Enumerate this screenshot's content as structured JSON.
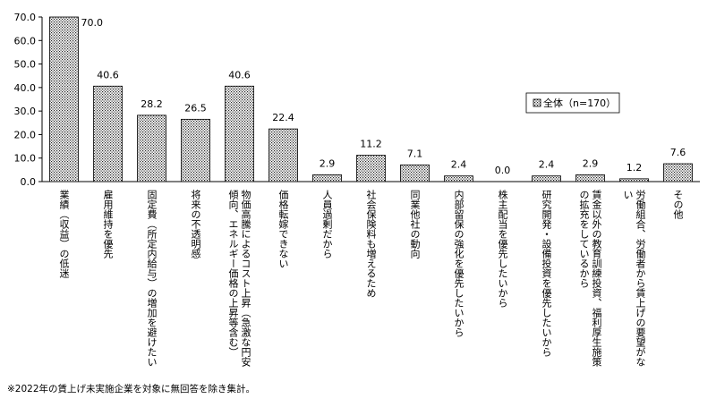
{
  "chart_data": {
    "type": "bar",
    "categories": [
      [
        "業績（収益）の低迷"
      ],
      [
        "雇用維持を優先"
      ],
      [
        "固定費（所定内給与）の増加を避けたい"
      ],
      [
        "将来の不透明感"
      ],
      [
        "物価高騰によるコスト上昇（急激な円安",
        "傾向、エネルギー価格の上昇等含む）"
      ],
      [
        "価格転嫁できない"
      ],
      [
        "人員過剰だから"
      ],
      [
        "社会保険料も増えるため"
      ],
      [
        "同業他社の動向"
      ],
      [
        "内部留保の強化を優先したいから"
      ],
      [
        "株主配当を優先したいから"
      ],
      [
        "研究開発・設備投資を優先したいから"
      ],
      [
        "賃金以外の教育訓練投資、福利厚生施策",
        "の拡充をしているから"
      ],
      [
        "労働組合、労働者から賃上げの要望がな",
        "い"
      ],
      [
        "その他"
      ]
    ],
    "series": [
      {
        "name": "全体（n=170）",
        "values": [
          70.0,
          40.6,
          28.2,
          26.5,
          40.6,
          22.4,
          2.9,
          11.2,
          7.1,
          2.4,
          0.0,
          2.4,
          2.9,
          1.2,
          7.6
        ],
        "labels": [
          "70.0",
          "40.6",
          "28.2",
          "26.5",
          "40.6",
          "22.4",
          "2.9",
          "11.2",
          "7.1",
          "2.4",
          "0.0",
          "2.4",
          "2.9",
          "1.2",
          "7.6"
        ]
      }
    ],
    "ylim": [
      0,
      70
    ],
    "yticks": [
      "0.0",
      "10.0",
      "20.0",
      "30.0",
      "40.0",
      "50.0",
      "60.0",
      "70.0"
    ],
    "grid": false,
    "legend": "right",
    "legend_label": "全体（n=170）",
    "footnote": "※2022年の賃上げ未実施企業を対象に無回答を除き集計。",
    "bar_pattern": "dotted"
  }
}
